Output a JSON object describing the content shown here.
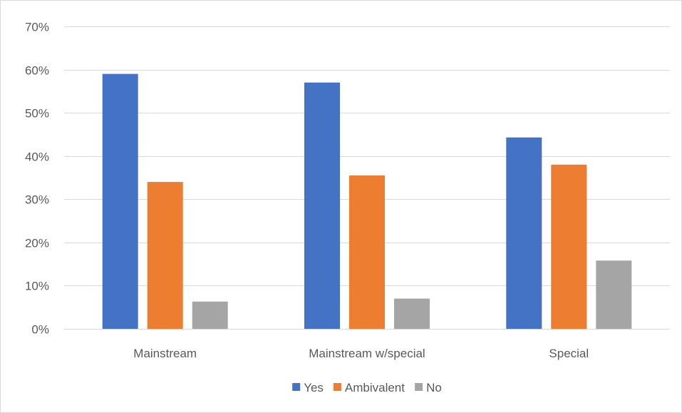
{
  "chart_data": {
    "type": "bar",
    "title": "",
    "xlabel": "",
    "ylabel": "",
    "categories": [
      "Mainstream",
      "Mainstream w/special",
      "Special"
    ],
    "series": [
      {
        "name": "Yes",
        "values": [
          0.59,
          0.57,
          0.443
        ],
        "color": "#4472C4"
      },
      {
        "name": "Ambivalent",
        "values": [
          0.34,
          0.355,
          0.38
        ],
        "color": "#ED7D31"
      },
      {
        "name": "No",
        "values": [
          0.063,
          0.07,
          0.158
        ],
        "color": "#A5A5A5"
      }
    ],
    "ylim": [
      0,
      0.7
    ],
    "yticks": [
      0,
      0.1,
      0.2,
      0.3,
      0.4,
      0.5,
      0.6,
      0.7
    ],
    "ytick_labels": [
      "0%",
      "10%",
      "20%",
      "30%",
      "40%",
      "50%",
      "60%",
      "70%"
    ],
    "grid": true,
    "legend_position": "bottom",
    "gridline_color": "#d9d9d9",
    "axis_line_color": "#d9d9d9"
  }
}
